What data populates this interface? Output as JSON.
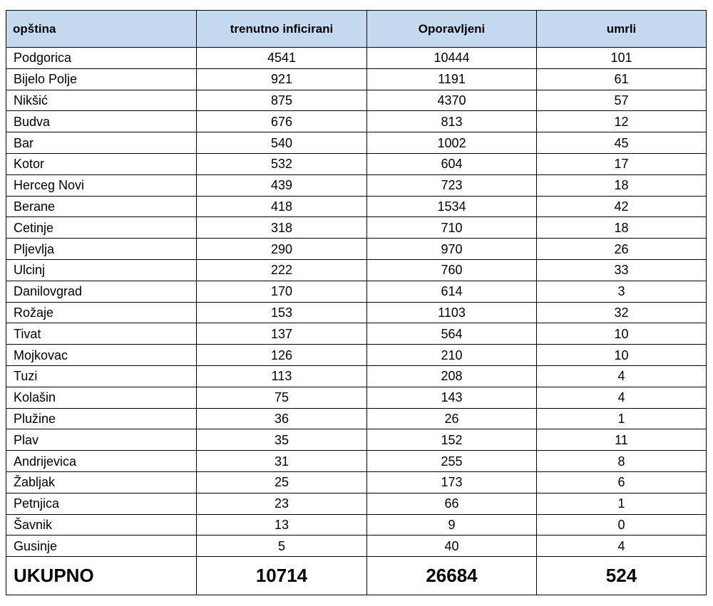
{
  "table": {
    "header": [
      "opština",
      "trenutno inficirani",
      "Oporavljeni",
      "umrli"
    ],
    "rows": [
      [
        "Podgorica",
        4541,
        10444,
        101
      ],
      [
        "Bijelo Polje",
        921,
        1191,
        61
      ],
      [
        "Nikšić",
        875,
        4370,
        57
      ],
      [
        "Budva",
        676,
        813,
        12
      ],
      [
        "Bar",
        540,
        1002,
        45
      ],
      [
        "Kotor",
        532,
        604,
        17
      ],
      [
        "Herceg Novi",
        439,
        723,
        18
      ],
      [
        "Berane",
        418,
        1534,
        42
      ],
      [
        "Cetinje",
        318,
        710,
        18
      ],
      [
        "Pljevlja",
        290,
        970,
        26
      ],
      [
        "Ulcinj",
        222,
        760,
        33
      ],
      [
        "Danilovgrad",
        170,
        614,
        3
      ],
      [
        "Rožaje",
        153,
        1103,
        32
      ],
      [
        "Tivat",
        137,
        564,
        10
      ],
      [
        "Mojkovac",
        126,
        210,
        10
      ],
      [
        "Tuzi",
        113,
        208,
        4
      ],
      [
        "Kolašin",
        75,
        143,
        4
      ],
      [
        "Plužine",
        36,
        26,
        1
      ],
      [
        "Plav",
        35,
        152,
        11
      ],
      [
        "Andrijevica",
        31,
        255,
        8
      ],
      [
        "Žabljak",
        25,
        173,
        6
      ],
      [
        "Petnjica",
        23,
        66,
        1
      ],
      [
        "Šavnik",
        13,
        9,
        0
      ],
      [
        "Gusinje",
        5,
        40,
        4
      ]
    ],
    "total": [
      "UKUPNO",
      10714,
      26684,
      524
    ]
  }
}
